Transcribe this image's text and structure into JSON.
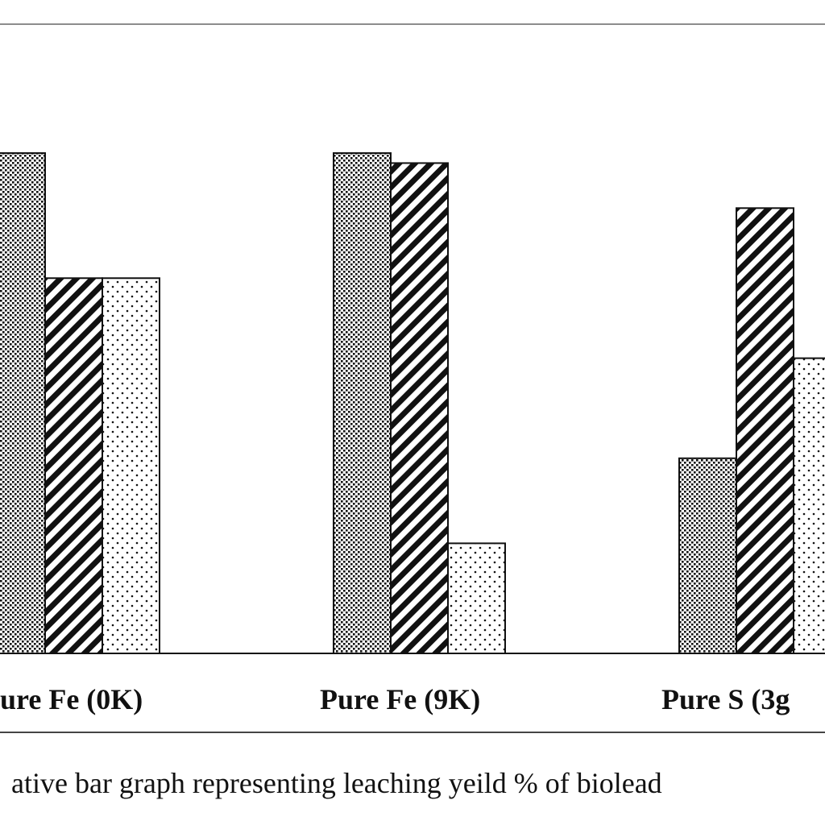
{
  "chart_data": {
    "type": "bar",
    "categories": [
      "ure Fe (0K)",
      "Pure Fe (9K)",
      "Pure S (3g"
    ],
    "series": [
      {
        "pattern": "dense-dots",
        "values": [
          100,
          100,
          39
        ]
      },
      {
        "pattern": "diagonal-hatch",
        "values": [
          75,
          98,
          89
        ]
      },
      {
        "pattern": "sparse-dots",
        "values": [
          75,
          22,
          59
        ]
      }
    ],
    "ylim": [
      0,
      100
    ],
    "grid": false,
    "legend": "none",
    "caption": "ative bar graph representing leaching  yeild % of biolead"
  },
  "colors": {
    "ink": "#111111",
    "frame": "#8c8c8c",
    "background": "#ffffff"
  }
}
